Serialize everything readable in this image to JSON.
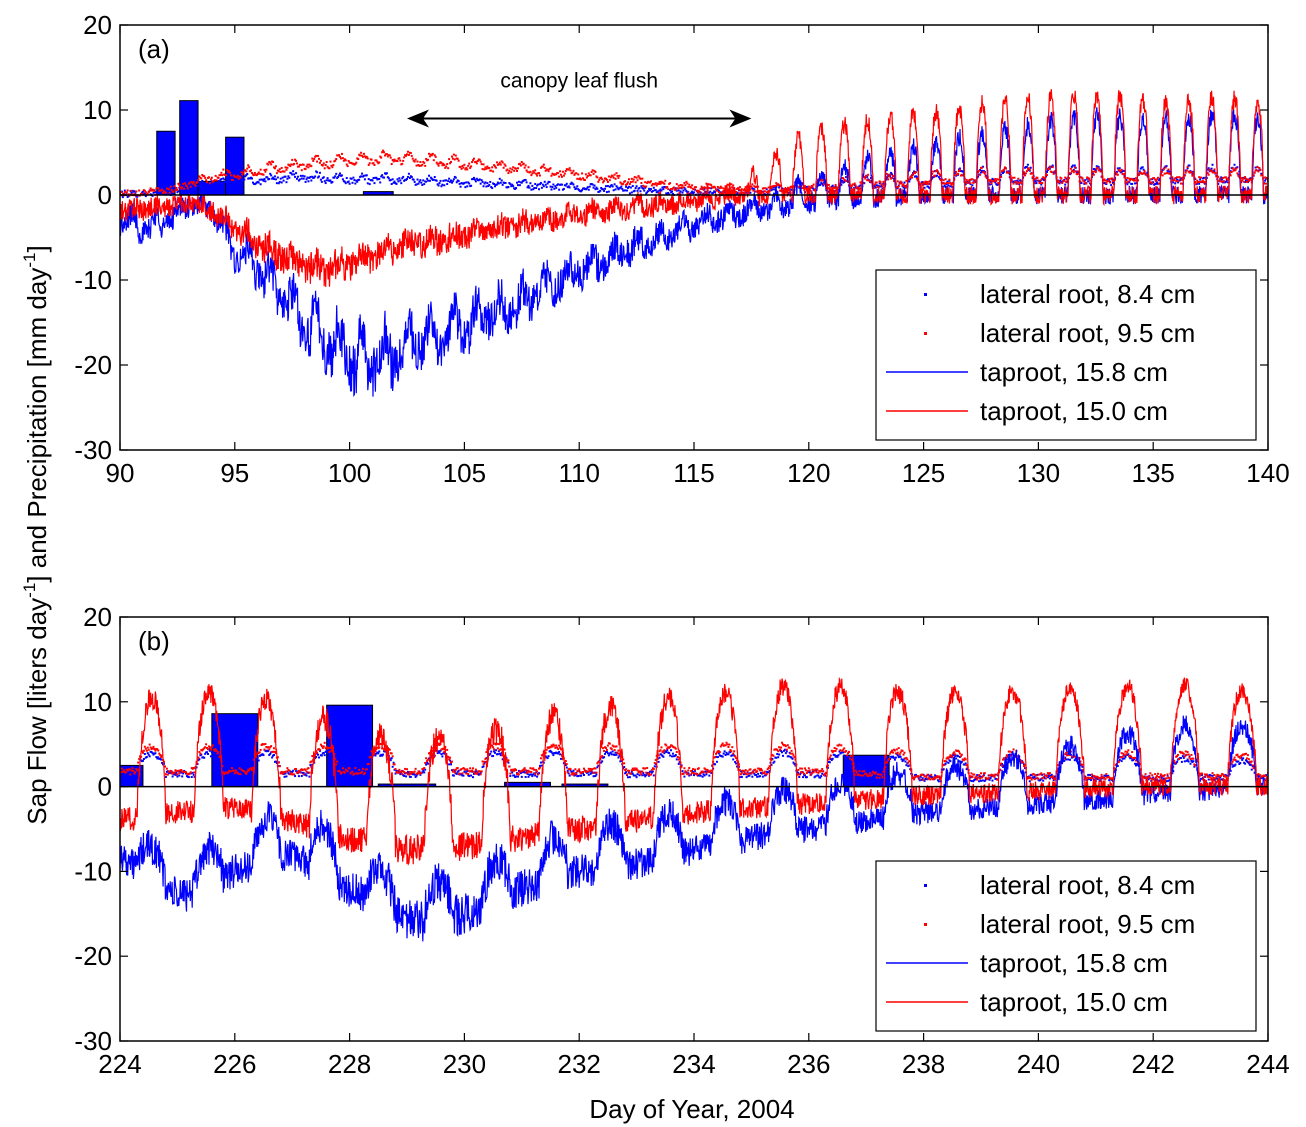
{
  "figure": {
    "ylabel_prefix": "Sap Flow [liters day",
    "ylabel_mid": "] and Precipitation [mm day",
    "ylabel_sup": "-1",
    "ylabel_end": "]",
    "xlabel": "Day of Year, 2004"
  },
  "colors": {
    "blue": "#0000ff",
    "red": "#ff0000",
    "bar": "#0000ff",
    "axis": "#000000"
  },
  "chart_data": [
    {
      "type": "line",
      "panel_label": "(a)",
      "xlim": [
        90,
        140
      ],
      "ylim": [
        -30,
        20
      ],
      "xticks": [
        90,
        95,
        100,
        105,
        110,
        115,
        120,
        125,
        130,
        135,
        140
      ],
      "yticks": [
        -30,
        -20,
        -10,
        0,
        10,
        20
      ],
      "grid": false,
      "legend_position": "bottom-right",
      "annotation": {
        "text": "canopy leaf flush",
        "arrow_from": 102.5,
        "arrow_to": 117.5,
        "y": 9
      },
      "precipitation_bars": [
        {
          "x0": 91.6,
          "x1": 92.4,
          "value": 7.5
        },
        {
          "x0": 92.6,
          "x1": 93.4,
          "value": 11.1
        },
        {
          "x0": 93.4,
          "x1": 94.6,
          "value": 1.6
        },
        {
          "x0": 94.6,
          "x1": 95.4,
          "value": 6.8
        },
        {
          "x0": 100.6,
          "x1": 101.9,
          "value": 0.4
        }
      ],
      "series": [
        {
          "name": "lateral root, 8.4 cm",
          "style": "dots",
          "color": "blue",
          "x": [
            90,
            92,
            94,
            96,
            98,
            100,
            102,
            104,
            106,
            108,
            110,
            112,
            114,
            116,
            118,
            120,
            122,
            124,
            126,
            128,
            130,
            132,
            134,
            136,
            138,
            140
          ],
          "base": [
            0.1,
            0.3,
            1.2,
            1.6,
            1.9,
            1.7,
            1.6,
            1.4,
            1.2,
            1.0,
            0.8,
            0.6,
            0.4,
            0.3,
            0.3,
            0.6,
            0.9,
            1.1,
            1.3,
            1.5,
            1.6,
            1.6,
            1.5,
            1.6,
            1.7,
            1.6
          ],
          "amp": [
            0,
            0,
            0.5,
            0.6,
            0.6,
            0.6,
            0.6,
            0.5,
            0.5,
            0.4,
            0.3,
            0.3,
            0.2,
            0.2,
            0.4,
            0.8,
            1.0,
            1.2,
            1.4,
            1.6,
            1.6,
            1.6,
            1.5,
            1.5,
            1.6,
            1.5
          ]
        },
        {
          "name": "lateral root, 9.5 cm",
          "style": "dots",
          "color": "red",
          "x": [
            90,
            92,
            94,
            96,
            98,
            100,
            102,
            104,
            106,
            108,
            110,
            112,
            114,
            116,
            118,
            120,
            122,
            124,
            126,
            128,
            130,
            132,
            134,
            136,
            138,
            140
          ],
          "base": [
            0.2,
            0.5,
            1.8,
            2.6,
            3.2,
            3.8,
            4.0,
            3.6,
            3.2,
            2.7,
            2.2,
            1.6,
            1.0,
            0.6,
            0.5,
            0.8,
            1.1,
            1.3,
            1.5,
            1.6,
            1.7,
            1.7,
            1.6,
            1.7,
            1.8,
            1.7
          ],
          "amp": [
            0,
            0,
            0.6,
            0.8,
            0.9,
            1.0,
            1.0,
            0.9,
            0.8,
            0.7,
            0.6,
            0.5,
            0.4,
            0.3,
            0.4,
            0.7,
            0.9,
            1.1,
            1.2,
            1.3,
            1.3,
            1.3,
            1.2,
            1.2,
            1.3,
            1.2
          ]
        },
        {
          "name": "taproot, 15.8 cm",
          "style": "line",
          "color": "blue",
          "x": [
            90,
            91,
            92,
            93,
            94,
            95,
            96,
            97,
            98,
            99,
            100,
            101,
            102,
            103,
            104,
            105,
            106,
            107,
            108,
            109,
            110,
            111,
            112,
            113,
            114,
            115,
            116,
            117,
            118,
            119,
            120,
            122,
            124,
            126,
            128,
            130,
            132,
            134,
            136,
            138,
            140
          ],
          "base": [
            -3.5,
            -4.5,
            -3.5,
            -1.5,
            -2.0,
            -7.5,
            -9.5,
            -12.5,
            -16.0,
            -18.5,
            -20.5,
            -21.0,
            -20.0,
            -18.5,
            -17.5,
            -16.5,
            -15.0,
            -14.0,
            -12.5,
            -11.0,
            -9.5,
            -8.5,
            -7.0,
            -6.0,
            -5.0,
            -4.0,
            -3.2,
            -2.5,
            -2.0,
            -1.5,
            -1.0,
            -0.5,
            -0.3,
            0,
            0,
            0,
            0,
            0,
            0,
            0,
            0
          ],
          "amp": [
            2.0,
            2.0,
            1.5,
            1.0,
            1.0,
            2.0,
            2.5,
            3.0,
            3.5,
            4.0,
            4.5,
            4.5,
            4.0,
            3.5,
            3.0,
            3.0,
            2.5,
            2.5,
            2.0,
            2.0,
            2.0,
            1.8,
            1.6,
            1.5,
            1.5,
            1.4,
            1.3,
            1.3,
            1.5,
            2.0,
            3.0,
            4.5,
            5.5,
            6.5,
            7.5,
            8.5,
            9.5,
            9.0,
            9.0,
            9.5,
            9.0
          ]
        },
        {
          "name": "taproot, 15.0 cm",
          "style": "line",
          "color": "red",
          "x": [
            90,
            91,
            92,
            93,
            94,
            95,
            96,
            97,
            98,
            99,
            100,
            101,
            102,
            103,
            104,
            105,
            106,
            107,
            108,
            109,
            110,
            111,
            112,
            113,
            114,
            115,
            116,
            117,
            118,
            119,
            120,
            122,
            124,
            126,
            128,
            130,
            132,
            134,
            136,
            138,
            140
          ],
          "base": [
            -2.0,
            -1.8,
            -1.5,
            -1.0,
            -2.0,
            -4.0,
            -6.0,
            -7.5,
            -8.5,
            -9.0,
            -8.5,
            -7.5,
            -6.5,
            -6.0,
            -5.5,
            -5.0,
            -4.5,
            -4.0,
            -3.5,
            -3.0,
            -2.5,
            -2.2,
            -1.8,
            -1.5,
            -1.2,
            -0.9,
            -0.6,
            -0.4,
            -0.2,
            0,
            0,
            0,
            0,
            0,
            0,
            0,
            0,
            0,
            0,
            0,
            0
          ],
          "amp": [
            0.5,
            0.5,
            0.5,
            0.5,
            0.5,
            0.8,
            1.0,
            1.0,
            1.0,
            1.0,
            1.2,
            1.2,
            1.0,
            1.0,
            1.0,
            0.9,
            0.9,
            0.8,
            0.8,
            0.8,
            0.8,
            0.8,
            0.8,
            0.8,
            0.8,
            0.8,
            0.8,
            0.9,
            4.0,
            6.0,
            7.5,
            8.5,
            9.5,
            10.0,
            11.0,
            11.5,
            12.0,
            11.5,
            11.0,
            11.5,
            11.0
          ]
        }
      ]
    },
    {
      "type": "line",
      "panel_label": "(b)",
      "xlim": [
        224,
        244
      ],
      "ylim": [
        -30,
        20
      ],
      "xticks": [
        224,
        226,
        228,
        230,
        232,
        234,
        236,
        238,
        240,
        242,
        244
      ],
      "yticks": [
        -30,
        -20,
        -10,
        0,
        10,
        20
      ],
      "grid": false,
      "legend_position": "bottom-right",
      "precipitation_bars": [
        {
          "x0": 224.0,
          "x1": 224.4,
          "value": 2.5
        },
        {
          "x0": 225.6,
          "x1": 226.4,
          "value": 8.6
        },
        {
          "x0": 227.6,
          "x1": 228.4,
          "value": 9.6
        },
        {
          "x0": 228.5,
          "x1": 229.5,
          "value": 0.3
        },
        {
          "x0": 230.7,
          "x1": 231.5,
          "value": 0.5
        },
        {
          "x0": 231.7,
          "x1": 232.5,
          "value": 0.3
        },
        {
          "x0": 236.6,
          "x1": 237.4,
          "value": 3.7
        }
      ],
      "series": [
        {
          "name": "lateral root, 8.4 cm",
          "style": "dots",
          "color": "blue",
          "x": [
            224,
            226,
            228,
            230,
            232,
            234,
            236,
            238,
            240,
            242,
            244
          ],
          "base": [
            1.5,
            1.5,
            1.5,
            1.5,
            1.5,
            1.5,
            1.5,
            1.0,
            1.0,
            1.0,
            1.0
          ],
          "amp": [
            2.5,
            2.5,
            2.5,
            2.5,
            2.5,
            2.5,
            2.5,
            2.5,
            2.5,
            2.5,
            2.0
          ]
        },
        {
          "name": "lateral root, 9.5 cm",
          "style": "dots",
          "color": "red",
          "x": [
            224,
            226,
            228,
            230,
            232,
            234,
            236,
            238,
            240,
            242,
            244
          ],
          "base": [
            1.8,
            1.8,
            1.8,
            1.8,
            1.8,
            1.8,
            1.8,
            1.2,
            1.2,
            1.2,
            1.2
          ],
          "amp": [
            3.0,
            3.0,
            3.0,
            3.0,
            3.0,
            3.0,
            3.0,
            2.8,
            2.8,
            2.8,
            2.5
          ]
        },
        {
          "name": "taproot, 15.8 cm",
          "style": "line",
          "color": "blue",
          "x": [
            224,
            225,
            226,
            227,
            228,
            229,
            230,
            231,
            232,
            233,
            234,
            235,
            236,
            237,
            238,
            239,
            240,
            241,
            242,
            243,
            244
          ],
          "base": [
            -8.0,
            -13.0,
            -10.0,
            -8.0,
            -12.0,
            -16.0,
            -15.0,
            -12.0,
            -10.0,
            -9.0,
            -7.5,
            -6.0,
            -5.0,
            -4.0,
            -3.0,
            -2.5,
            -2.0,
            -1.5,
            -1.0,
            -0.5,
            0
          ],
          "amp": [
            3.0,
            4.0,
            4.0,
            6.0,
            5.0,
            4.0,
            4.0,
            5.0,
            5.0,
            5.0,
            5.0,
            5.0,
            5.0,
            5.0,
            5.0,
            5.0,
            6.0,
            7.0,
            8.0,
            8.0,
            7.0
          ]
        },
        {
          "name": "taproot, 15.0 cm",
          "style": "line",
          "color": "red",
          "x": [
            224,
            225,
            226,
            227,
            228,
            229,
            230,
            231,
            232,
            233,
            234,
            235,
            236,
            237,
            238,
            239,
            240,
            241,
            242,
            243,
            244
          ],
          "base": [
            -4.0,
            -3.0,
            -2.5,
            -4.0,
            -6.0,
            -7.5,
            -7.0,
            -6.0,
            -5.0,
            -4.0,
            -3.0,
            -2.5,
            -2.0,
            -1.5,
            -1.0,
            -0.8,
            -0.5,
            -0.3,
            0,
            0,
            0
          ],
          "amp": [
            14.0,
            14.0,
            14.0,
            13.5,
            13.0,
            13.0,
            13.0,
            13.5,
            14.0,
            14.0,
            14.0,
            14.0,
            14.0,
            13.0,
            12.0,
            12.0,
            12.0,
            12.0,
            12.0,
            12.0,
            11.0
          ]
        }
      ]
    }
  ]
}
